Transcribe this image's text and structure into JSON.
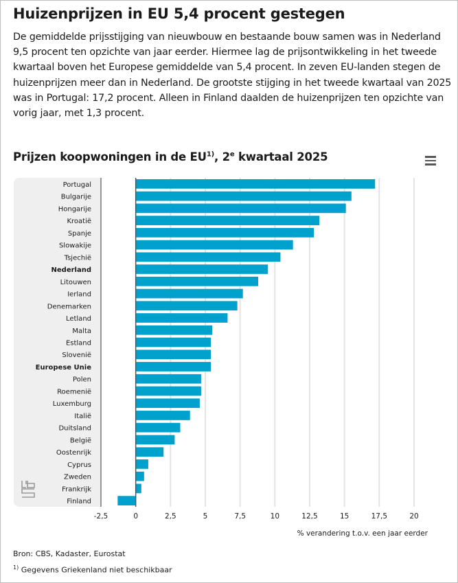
{
  "header": {
    "title": "Huizenprijzen in EU 5,4 procent gestegen",
    "intro": "De gemiddelde prijsstijging van nieuwbouw en bestaande bouw samen was in Nederland 9,5 procent ten opzichte van jaar eerder. Hiermee lag de prijsontwikkeling in het tweede kwartaal boven het Europese gemiddelde van 5,4 procent. In zeven EU-landen stegen de huizenprijzen meer dan in Nederland. De grootste stijging in het tweede kwartaal van 2025 was in Portugal: 17,2 procent. Alleen in Finland daalden de huizenprijzen ten opzichte van vorig jaar, met 1,3 procent."
  },
  "chart_data": {
    "type": "bar",
    "orientation": "horizontal",
    "title_main": "Prijzen koopwoningen in de EU",
    "title_sup1": "1)",
    "title_mid": ", 2",
    "title_sup2": "e",
    "title_end": " kwartaal 2025",
    "xlabel": "% verandering t.o.v. een jaar eerder",
    "xlim": [
      -2.5,
      20
    ],
    "xticks": [
      -2.5,
      0,
      2.5,
      5,
      7.5,
      10,
      12.5,
      15,
      17.5,
      20
    ],
    "xtick_labels": [
      "-2,5",
      "0",
      "2,5",
      "5",
      "7,5",
      "10",
      "12,5",
      "15",
      "17,5",
      "20"
    ],
    "grid": true,
    "bar_color": "#00a1cd",
    "categories": [
      "Portugal",
      "Bulgarije",
      "Hongarije",
      "Kroatië",
      "Spanje",
      "Slowakije",
      "Tsjechië",
      "Nederland",
      "Litouwen",
      "Ierland",
      "Denemarken",
      "Letland",
      "Malta",
      "Estland",
      "Slovenië",
      "Europese Unie",
      "Polen",
      "Roemenië",
      "Luxemburg",
      "Italië",
      "Duitsland",
      "België",
      "Oostenrijk",
      "Cyprus",
      "Zweden",
      "Frankrijk",
      "Finland"
    ],
    "bold_categories": [
      "Nederland",
      "Europese Unie"
    ],
    "values": [
      17.2,
      15.5,
      15.1,
      13.2,
      12.8,
      11.3,
      10.4,
      9.5,
      8.8,
      7.7,
      7.3,
      6.6,
      5.5,
      5.4,
      5.4,
      5.4,
      4.7,
      4.7,
      4.6,
      3.9,
      3.2,
      2.8,
      2.0,
      0.9,
      0.6,
      0.4,
      -1.3
    ]
  },
  "footer": {
    "source": "Bron: CBS, Kadaster, Eurostat",
    "note_sup": "1)",
    "note": " Gegevens Griekenland niet beschikbaar"
  },
  "menu_icon": "hamburger-menu-icon",
  "logo": "cbs-logo"
}
